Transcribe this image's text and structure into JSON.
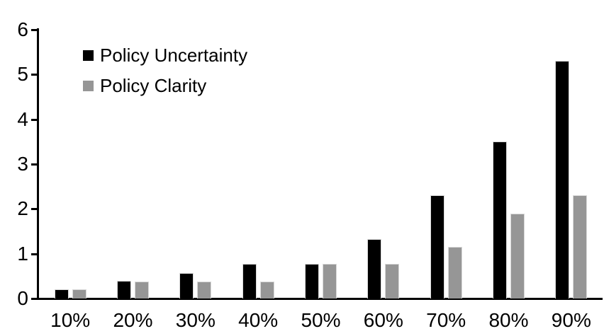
{
  "chart_data": {
    "type": "bar",
    "title": "",
    "xlabel": "",
    "ylabel": "",
    "categories": [
      "10%",
      "20%",
      "30%",
      "40%",
      "50%",
      "60%",
      "70%",
      "80%",
      "90%"
    ],
    "series": [
      {
        "name": "Policy Uncertainty",
        "color": "#000000",
        "values": [
          0.2,
          0.4,
          0.57,
          0.77,
          0.78,
          1.33,
          2.3,
          3.5,
          5.3
        ]
      },
      {
        "name": "Policy Clarity",
        "color": "#969696",
        "values": [
          0.2,
          0.38,
          0.38,
          0.38,
          0.77,
          0.77,
          1.15,
          1.9,
          2.3
        ]
      }
    ],
    "ylim": [
      0,
      6
    ],
    "y_ticks": [
      0,
      1,
      2,
      3,
      4,
      5,
      6
    ],
    "grid": false,
    "legend_position": "top-left"
  }
}
